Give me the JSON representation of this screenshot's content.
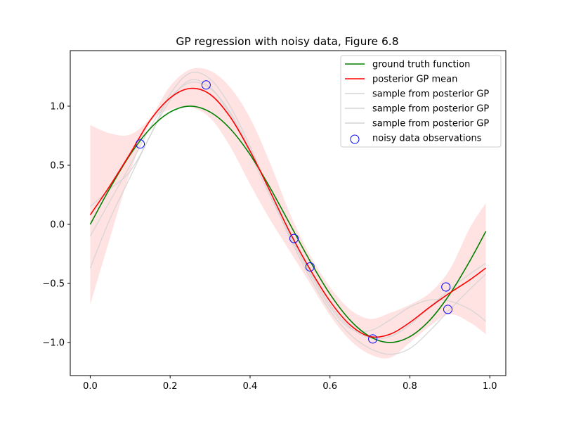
{
  "chart_data": {
    "type": "line",
    "title": "GP regression with noisy data, Figure 6.8",
    "xlabel": "",
    "ylabel": "",
    "xlim": [
      -0.05,
      1.04
    ],
    "ylim": [
      -1.28,
      1.47
    ],
    "x_ticks": [
      0.0,
      0.2,
      0.4,
      0.6,
      0.8,
      1.0
    ],
    "x_tick_labels": [
      "0.0",
      "0.2",
      "0.4",
      "0.6",
      "0.8",
      "1.0"
    ],
    "y_ticks": [
      -1.0,
      -0.5,
      0.0,
      0.5,
      1.0
    ],
    "y_tick_labels": [
      "−1.0",
      "−0.5",
      "0.0",
      "0.5",
      "1.0"
    ],
    "grid": false,
    "legend_position": "top-right",
    "x": [
      0.0,
      0.05,
      0.1,
      0.15,
      0.2,
      0.25,
      0.3,
      0.35,
      0.4,
      0.45,
      0.5,
      0.55,
      0.6,
      0.65,
      0.7,
      0.75,
      0.8,
      0.85,
      0.9,
      0.95,
      0.99
    ],
    "series": [
      {
        "name": "ground truth function",
        "kind": "line",
        "color": "#008000",
        "y": [
          0.0,
          0.31,
          0.59,
          0.81,
          0.95,
          1.0,
          0.95,
          0.81,
          0.59,
          0.31,
          0.0,
          -0.31,
          -0.59,
          -0.81,
          -0.95,
          -1.0,
          -0.95,
          -0.81,
          -0.59,
          -0.31,
          -0.06
        ]
      },
      {
        "name": "posterior GP mean",
        "kind": "line",
        "color": "#ff0000",
        "y": [
          0.08,
          0.33,
          0.6,
          0.88,
          1.07,
          1.15,
          1.1,
          0.91,
          0.62,
          0.28,
          -0.07,
          -0.38,
          -0.65,
          -0.85,
          -0.95,
          -0.93,
          -0.83,
          -0.7,
          -0.58,
          -0.47,
          -0.37
        ]
      },
      {
        "name": "sample from posterior GP",
        "kind": "line",
        "color": "#d3d3d3",
        "y": [
          0.15,
          0.3,
          0.45,
          0.75,
          1.1,
          1.28,
          1.23,
          1.0,
          0.66,
          0.27,
          -0.12,
          -0.45,
          -0.73,
          -0.93,
          -1.05,
          -1.1,
          -1.05,
          -0.9,
          -0.72,
          -0.55,
          -0.42
        ]
      },
      {
        "name": "sample from posterior GP",
        "kind": "line",
        "color": "#d3d3d3",
        "y": [
          -0.37,
          0.05,
          0.4,
          0.75,
          1.05,
          1.22,
          1.16,
          0.93,
          0.6,
          0.24,
          -0.1,
          -0.42,
          -0.7,
          -0.88,
          -0.9,
          -0.81,
          -0.7,
          -0.64,
          -0.65,
          -0.72,
          -0.82
        ]
      },
      {
        "name": "sample from posterior GP",
        "kind": "line",
        "color": "#d3d3d3",
        "y": [
          -0.1,
          0.2,
          0.5,
          0.82,
          1.07,
          1.2,
          1.15,
          0.95,
          0.63,
          0.27,
          -0.08,
          -0.4,
          -0.68,
          -0.87,
          -0.96,
          -0.95,
          -0.85,
          -0.7,
          -0.55,
          -0.42,
          -0.33
        ]
      },
      {
        "name": "noisy data observations",
        "kind": "scatter",
        "color": "#0000ff",
        "points": [
          [
            0.125,
            0.68
          ],
          [
            0.29,
            1.18
          ],
          [
            0.51,
            -0.12
          ],
          [
            0.55,
            -0.36
          ],
          [
            0.707,
            -0.97
          ],
          [
            0.89,
            -0.53
          ],
          [
            0.895,
            -0.72
          ]
        ]
      }
    ],
    "confidence_band": {
      "color": "#ffcccc",
      "upper": [
        0.84,
        0.77,
        0.76,
        0.9,
        1.17,
        1.31,
        1.3,
        1.16,
        0.9,
        0.52,
        0.09,
        -0.26,
        -0.53,
        -0.72,
        -0.8,
        -0.75,
        -0.68,
        -0.58,
        -0.38,
        -0.03,
        0.18
      ],
      "lower": [
        -0.68,
        -0.11,
        0.44,
        0.86,
        0.97,
        0.99,
        0.9,
        0.66,
        0.34,
        0.04,
        -0.23,
        -0.5,
        -0.77,
        -0.98,
        -1.1,
        -1.13,
        -1.0,
        -0.86,
        -0.76,
        -0.83,
        -0.93
      ]
    },
    "legend": [
      {
        "label": "ground truth function",
        "style": "line",
        "color": "#008000"
      },
      {
        "label": "posterior GP mean",
        "style": "line",
        "color": "#ff0000"
      },
      {
        "label": "sample from posterior GP",
        "style": "line",
        "color": "#d3d3d3"
      },
      {
        "label": "sample from posterior GP",
        "style": "line",
        "color": "#d3d3d3"
      },
      {
        "label": "sample from posterior GP",
        "style": "line",
        "color": "#d3d3d3"
      },
      {
        "label": "noisy data observations",
        "style": "marker",
        "color": "#0000ff"
      }
    ]
  }
}
